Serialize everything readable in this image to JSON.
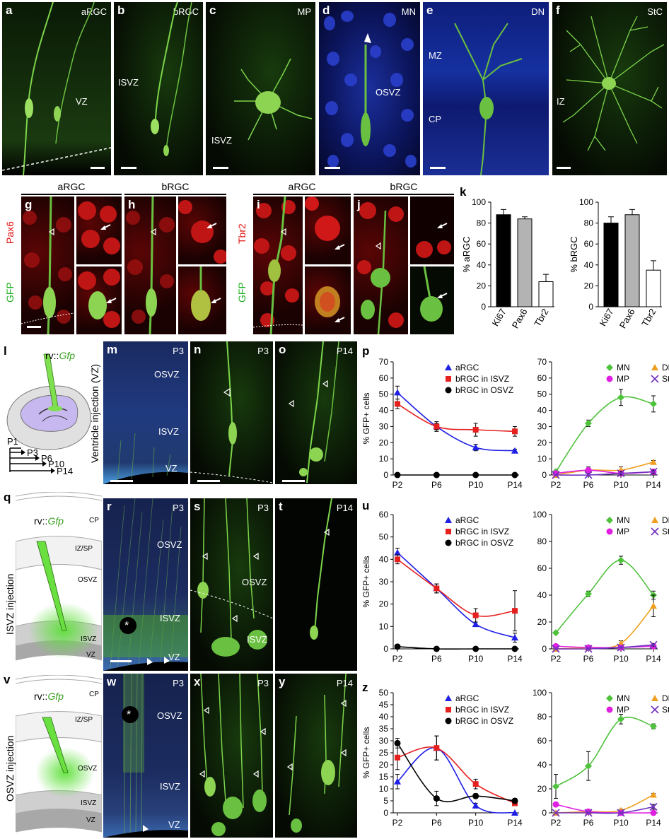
{
  "row1": [
    {
      "letter": "a",
      "title": "aRGC",
      "zone": "VZ"
    },
    {
      "letter": "b",
      "title": "bRGC",
      "zone": "ISVZ"
    },
    {
      "letter": "c",
      "title": "MP",
      "zone": "ISVZ"
    },
    {
      "letter": "d",
      "title": "MN",
      "zone": "OSVZ"
    },
    {
      "letter": "e",
      "title": "DN",
      "zone1": "MZ",
      "zone2": "CP"
    },
    {
      "letter": "f",
      "title": "StC",
      "zone": "IZ"
    }
  ],
  "row2": {
    "group_g": "aRGC",
    "group_h": "bRGC",
    "group_i": "aRGC",
    "group_j": "bRGC",
    "letters": [
      "g",
      "h",
      "i",
      "j"
    ],
    "ylabel_left_red": "Pax6",
    "ylabel_left_green": "GFP",
    "ylabel_right_red": "Tbr2",
    "ylabel_right_green": "GFP"
  },
  "panel_k": {
    "letter": "k",
    "chart_data": [
      {
        "type": "bar",
        "categories": [
          "Ki67",
          "Pax6",
          "Tbr2"
        ],
        "values": [
          88,
          84,
          24
        ],
        "errors": [
          5,
          2,
          7
        ],
        "ylabel": "% aRGC",
        "ylim": [
          0,
          100
        ],
        "yticks": [
          0,
          20,
          40,
          60,
          80,
          100
        ],
        "colors": [
          "#000000",
          "#b3b3b3",
          "#ffffff"
        ]
      },
      {
        "type": "bar",
        "categories": [
          "Ki67",
          "Pax6",
          "Tbr2"
        ],
        "values": [
          80,
          88,
          35
        ],
        "errors": [
          6,
          5,
          9
        ],
        "ylabel": "% bRGC",
        "ylim": [
          0,
          100
        ],
        "yticks": [
          0,
          20,
          40,
          60,
          80,
          100
        ],
        "colors": [
          "#000000",
          "#b3b3b3",
          "#ffffff"
        ]
      }
    ]
  },
  "panel_l": {
    "letter": "l",
    "virus_prefix": "rv::",
    "virus_gene": "Gfp",
    "timeline": [
      "P1",
      "P3",
      "P6",
      "P10",
      "P14"
    ]
  },
  "panel_m": {
    "letter": "m",
    "title": "P3",
    "zones": [
      "OSVZ",
      "ISVZ",
      "VZ"
    ],
    "side_label": "Ventricle injection (VZ)"
  },
  "panel_n": {
    "letter": "n",
    "title": "P3"
  },
  "panel_o": {
    "letter": "o",
    "title": "P14"
  },
  "panel_q": {
    "letter": "q",
    "virus_prefix": "rv::",
    "virus_gene": "Gfp",
    "layers": [
      "CP",
      "IZ/SP",
      "OSVZ",
      "ISVZ",
      "VZ"
    ],
    "side_label": "ISVZ injection"
  },
  "panel_r": {
    "letter": "r",
    "title": "P3",
    "zones": [
      "OSVZ",
      "ISVZ",
      "VZ"
    ],
    "star": "*"
  },
  "panel_s": {
    "letter": "s",
    "title": "P3",
    "zones": [
      "OSVZ",
      "ISVZ"
    ]
  },
  "panel_t": {
    "letter": "t",
    "title": "P14"
  },
  "panel_v": {
    "letter": "v",
    "virus_prefix": "rv::",
    "virus_gene": "Gfp",
    "layers": [
      "CP",
      "IZ/SP",
      "OSVZ",
      "ISVZ",
      "VZ"
    ],
    "side_label": "OSVZ injection"
  },
  "panel_w": {
    "letter": "w",
    "title": "P3",
    "zones": [
      "OSVZ",
      "ISVZ",
      "VZ"
    ],
    "star": "*"
  },
  "panel_x": {
    "letter": "x",
    "title": "P3"
  },
  "panel_y": {
    "letter": "y",
    "title": "P14"
  },
  "line_charts": {
    "x": [
      "P2",
      "P6",
      "P10",
      "P14"
    ],
    "ylabel": "% GFP+ cells",
    "p": {
      "letter": "p",
      "left": {
        "type": "line",
        "ylim": [
          0,
          70
        ],
        "yticks": [
          0,
          10,
          20,
          30,
          40,
          50,
          60,
          70
        ],
        "series": [
          {
            "name": "aRGC",
            "values": [
              51,
              30,
              17,
              15
            ],
            "errors": [
              4,
              2,
              2,
              1
            ],
            "color": "#1f1fe6",
            "marker": "triangle"
          },
          {
            "name": "bRGC in ISVZ",
            "values": [
              44,
              30,
              28,
              27
            ],
            "errors": [
              3,
              3,
              4,
              3
            ],
            "color": "#e61f1f",
            "marker": "square"
          },
          {
            "name": "bRGC in OSVZ",
            "values": [
              0,
              0,
              0,
              0
            ],
            "errors": [
              0,
              0,
              0,
              0
            ],
            "color": "#000000",
            "marker": "circle"
          }
        ]
      },
      "right": {
        "type": "line",
        "ylim": [
          0,
          70
        ],
        "yticks": [
          0,
          10,
          20,
          30,
          40,
          50,
          60,
          70
        ],
        "series": [
          {
            "name": "MN",
            "values": [
              2,
              32,
              48,
              44
            ],
            "errors": [
              1,
              2,
              5,
              5
            ],
            "color": "#4fc23c",
            "marker": "diamond"
          },
          {
            "name": "DN",
            "values": [
              0,
              3,
              3,
              8
            ],
            "errors": [
              0,
              1,
              2,
              1
            ],
            "color": "#f0a020",
            "marker": "tri"
          },
          {
            "name": "MP",
            "values": [
              1,
              3,
              1,
              2
            ],
            "errors": [
              0,
              2,
              1,
              1
            ],
            "color": "#e020e0",
            "marker": "circle"
          },
          {
            "name": "StC",
            "values": [
              0,
              0,
              1,
              2
            ],
            "errors": [
              0,
              0,
              1,
              1
            ],
            "color": "#7030c0",
            "marker": "x"
          }
        ]
      }
    },
    "u": {
      "letter": "u",
      "left": {
        "type": "line",
        "ylim": [
          0,
          60
        ],
        "yticks": [
          0,
          10,
          20,
          30,
          40,
          50,
          60
        ],
        "series": [
          {
            "name": "aRGC",
            "values": [
              43,
              27,
              11,
              5
            ],
            "errors": [
              2,
              2,
              1,
              2
            ],
            "color": "#1f1fe6",
            "marker": "triangle"
          },
          {
            "name": "bRGC in ISVZ",
            "values": [
              40,
              27,
              15,
              17
            ],
            "errors": [
              2,
              2,
              3,
              9
            ],
            "color": "#e61f1f",
            "marker": "square"
          },
          {
            "name": "bRGC in OSVZ",
            "values": [
              1,
              0,
              0,
              0
            ],
            "errors": [
              0,
              0,
              0,
              0
            ],
            "color": "#000000",
            "marker": "circle"
          }
        ]
      },
      "right": {
        "type": "line",
        "ylim": [
          0,
          100
        ],
        "yticks": [
          0,
          20,
          40,
          60,
          80,
          100
        ],
        "series": [
          {
            "name": "MN",
            "values": [
              12,
              41,
              66,
              40
            ],
            "errors": [
              1,
              2,
              3,
              3
            ],
            "color": "#4fc23c",
            "marker": "diamond"
          },
          {
            "name": "DN",
            "values": [
              0,
              1,
              4,
              32
            ],
            "errors": [
              0,
              0,
              2,
              8
            ],
            "color": "#f0a020",
            "marker": "tri"
          },
          {
            "name": "MP",
            "values": [
              2,
              1,
              1,
              2
            ],
            "errors": [
              1,
              0,
              0,
              1
            ],
            "color": "#e020e0",
            "marker": "circle"
          },
          {
            "name": "StC",
            "values": [
              0,
              0,
              1,
              3
            ],
            "errors": [
              0,
              0,
              0,
              1
            ],
            "color": "#7030c0",
            "marker": "x"
          }
        ]
      }
    },
    "z": {
      "letter": "z",
      "left": {
        "type": "line",
        "ylim": [
          0,
          50
        ],
        "yticks": [
          0,
          5,
          10,
          15,
          20,
          25,
          30,
          35,
          40,
          45,
          50
        ],
        "series": [
          {
            "name": "aRGC",
            "values": [
              13,
              27,
              3,
              0
            ],
            "errors": [
              3,
              5,
              1,
              0
            ],
            "color": "#1f1fe6",
            "marker": "triangle"
          },
          {
            "name": "bRGC in ISVZ",
            "values": [
              23,
              27,
              12,
              4
            ],
            "errors": [
              5,
              5,
              2,
              1
            ],
            "color": "#e61f1f",
            "marker": "square"
          },
          {
            "name": "bRGC in OSVZ",
            "values": [
              29,
              6,
              7,
              5
            ],
            "errors": [
              2,
              3,
              1,
              1
            ],
            "color": "#000000",
            "marker": "circle"
          }
        ]
      },
      "right": {
        "type": "line",
        "ylim": [
          0,
          100
        ],
        "yticks": [
          0,
          20,
          40,
          60,
          80,
          100
        ],
        "series": [
          {
            "name": "MN",
            "values": [
              22,
              39,
              78,
              72
            ],
            "errors": [
              10,
              12,
              4,
              2
            ],
            "color": "#4fc23c",
            "marker": "diamond"
          },
          {
            "name": "DN",
            "values": [
              0,
              1,
              2,
              15
            ],
            "errors": [
              0,
              0,
              1,
              1
            ],
            "color": "#f0a020",
            "marker": "tri"
          },
          {
            "name": "MP",
            "values": [
              7,
              1,
              0,
              0
            ],
            "errors": [
              1,
              1,
              0,
              0
            ],
            "color": "#e020e0",
            "marker": "circle"
          },
          {
            "name": "StC",
            "values": [
              0,
              0,
              0,
              5
            ],
            "errors": [
              0,
              0,
              0,
              2
            ],
            "color": "#7030c0",
            "marker": "x"
          }
        ]
      }
    }
  }
}
